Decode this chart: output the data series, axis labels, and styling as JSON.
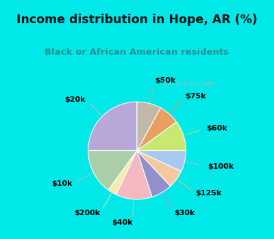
{
  "title": "Income distribution in Hope, AR (%)",
  "subtitle": "Black or African American residents",
  "watermark": "© City-Data.com",
  "labels": [
    "$20k",
    "$10k",
    "$200k",
    "$40k",
    "$30k",
    "$125k",
    "$100k",
    "$60k",
    "$75k",
    "$50k"
  ],
  "sizes": [
    25,
    15,
    3,
    12,
    7,
    6,
    7,
    10,
    7,
    8
  ],
  "colors": [
    "#b8a8d8",
    "#aacfa8",
    "#f0eeaa",
    "#f4b8c0",
    "#9090cc",
    "#f5c8a0",
    "#a8c8f0",
    "#c8e870",
    "#e8a060",
    "#c0b8a8"
  ],
  "startangle": 90,
  "bg_color_outer": "#00e8e8",
  "bg_color_inner": "#dff0e8",
  "title_color": "#111111",
  "subtitle_color": "#2a9090",
  "label_fontsize": 8,
  "title_fontsize": 12.5,
  "subtitle_fontsize": 9.5,
  "watermark_color": "#b0b8c8",
  "line_color_map": {
    "$20k": "#c8b8e0",
    "$10k": "#b0c8a8",
    "$200k": "#e0e0a0",
    "$40k": "#f0b0c0",
    "$30k": "#a0a0cc",
    "$125k": "#e8c090",
    "$100k": "#a0c0e8",
    "$60k": "#c0e060",
    "$75k": "#e09858",
    "$50k": "#b8b0a0"
  }
}
